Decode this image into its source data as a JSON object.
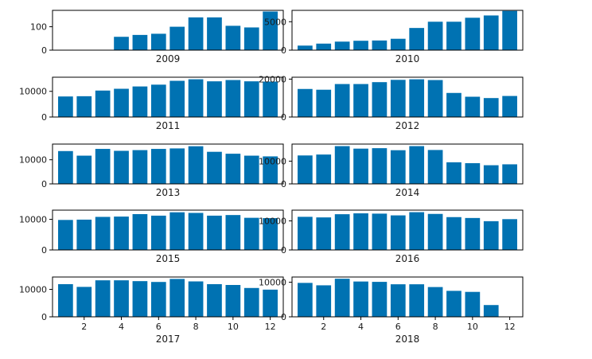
{
  "colors": {
    "bar": "#0072b2",
    "axis": "#000000",
    "text": "#1a1a1a"
  },
  "chart_data": [
    {
      "type": "bar",
      "title": "2009",
      "x": [
        1,
        2,
        3,
        4,
        5,
        6,
        7,
        8,
        9,
        10,
        11,
        12
      ],
      "values": [
        null,
        null,
        null,
        57,
        65,
        70,
        100,
        140,
        140,
        104,
        97,
        165
      ],
      "ylim": [
        0,
        170
      ],
      "yticks": [
        0,
        100
      ],
      "ytick_labels": [
        "0",
        "100"
      ],
      "xticks": [],
      "xtick_labels": []
    },
    {
      "type": "bar",
      "title": "2010",
      "x": [
        1,
        2,
        3,
        4,
        5,
        6,
        7,
        8,
        9,
        10,
        11,
        12
      ],
      "values": [
        800,
        1150,
        1500,
        1650,
        1700,
        2000,
        3900,
        5000,
        5000,
        5700,
        6100,
        6900
      ],
      "ylim": [
        0,
        7000
      ],
      "yticks": [
        0,
        5000
      ],
      "ytick_labels": [
        "0",
        "5000"
      ],
      "xticks": [],
      "xtick_labels": []
    },
    {
      "type": "bar",
      "title": "2011",
      "x": [
        1,
        2,
        3,
        4,
        5,
        6,
        7,
        8,
        9,
        10,
        11,
        12
      ],
      "values": [
        8000,
        8100,
        10300,
        11000,
        11900,
        12600,
        14100,
        14700,
        13900,
        14400,
        13900,
        13800
      ],
      "ylim": [
        0,
        15500
      ],
      "yticks": [
        0,
        10000
      ],
      "ytick_labels": [
        "0",
        "10000"
      ],
      "xticks": [],
      "xtick_labels": []
    },
    {
      "type": "bar",
      "title": "2012",
      "x": [
        1,
        2,
        3,
        4,
        5,
        6,
        7,
        8,
        9,
        10,
        11,
        12
      ],
      "values": [
        14800,
        14400,
        17400,
        17400,
        18400,
        19600,
        19900,
        19500,
        12700,
        10700,
        10000,
        11100
      ],
      "ylim": [
        0,
        21000
      ],
      "yticks": [
        0,
        20000
      ],
      "ytick_labels": [
        "0",
        "20000"
      ],
      "xticks": [],
      "xtick_labels": []
    },
    {
      "type": "bar",
      "title": "2013",
      "x": [
        1,
        2,
        3,
        4,
        5,
        6,
        7,
        8,
        9,
        10,
        11,
        12
      ],
      "values": [
        13600,
        11700,
        14500,
        13700,
        14000,
        14500,
        14700,
        15600,
        13300,
        12500,
        11700,
        11400
      ],
      "ylim": [
        0,
        16500
      ],
      "yticks": [
        0,
        10000
      ],
      "ytick_labels": [
        "0",
        "10000"
      ],
      "xticks": [],
      "xtick_labels": []
    },
    {
      "type": "bar",
      "title": "2014",
      "x": [
        1,
        2,
        3,
        4,
        5,
        6,
        7,
        8,
        9,
        10,
        11,
        12
      ],
      "values": [
        12500,
        12900,
        16600,
        15500,
        15700,
        14800,
        16600,
        14900,
        9500,
        9100,
        8200,
        8600
      ],
      "ylim": [
        0,
        17500
      ],
      "yticks": [
        0,
        10000
      ],
      "ytick_labels": [
        "0",
        "10000"
      ],
      "xticks": [],
      "xtick_labels": []
    },
    {
      "type": "bar",
      "title": "2015",
      "x": [
        1,
        2,
        3,
        4,
        5,
        6,
        7,
        8,
        9,
        10,
        11,
        12
      ],
      "values": [
        9800,
        9900,
        10800,
        10900,
        11700,
        11200,
        12300,
        12100,
        11200,
        11400,
        10500,
        10400
      ],
      "ylim": [
        0,
        13000
      ],
      "yticks": [
        0,
        10000
      ],
      "ytick_labels": [
        "0",
        "10000"
      ],
      "xticks": [],
      "xtick_labels": []
    },
    {
      "type": "bar",
      "title": "2016",
      "x": [
        1,
        2,
        3,
        4,
        5,
        6,
        7,
        8,
        9,
        10,
        11,
        12
      ],
      "values": [
        11400,
        11200,
        12300,
        12600,
        12500,
        11900,
        13000,
        12400,
        11300,
        11000,
        9900,
        10600
      ],
      "ylim": [
        0,
        13700
      ],
      "yticks": [
        0,
        10000
      ],
      "ytick_labels": [
        "0",
        "10000"
      ],
      "xticks": [],
      "xtick_labels": []
    },
    {
      "type": "bar",
      "title": "2017",
      "x": [
        1,
        2,
        3,
        4,
        5,
        6,
        7,
        8,
        9,
        10,
        11,
        12
      ],
      "values": [
        11900,
        10900,
        13300,
        13300,
        13000,
        12700,
        13800,
        12900,
        11900,
        11600,
        10500,
        9900
      ],
      "ylim": [
        0,
        14500
      ],
      "yticks": [
        0,
        10000
      ],
      "ytick_labels": [
        "0",
        "10000"
      ],
      "xticks": [
        2,
        4,
        6,
        8,
        10,
        12
      ],
      "xtick_labels": [
        "2",
        "4",
        "6",
        "8",
        "10",
        "12"
      ]
    },
    {
      "type": "bar",
      "title": "2018",
      "x": [
        1,
        2,
        3,
        4,
        5,
        6,
        7,
        8,
        9,
        10,
        11,
        12
      ],
      "values": [
        9800,
        9100,
        11000,
        10200,
        10100,
        9400,
        9400,
        8600,
        7500,
        7200,
        3400,
        null
      ],
      "ylim": [
        0,
        11500
      ],
      "yticks": [
        0,
        10000
      ],
      "ytick_labels": [
        "0",
        "10000"
      ],
      "xticks": [
        2,
        4,
        6,
        8,
        10,
        12
      ],
      "xtick_labels": [
        "2",
        "4",
        "6",
        "8",
        "10",
        "12"
      ]
    }
  ]
}
